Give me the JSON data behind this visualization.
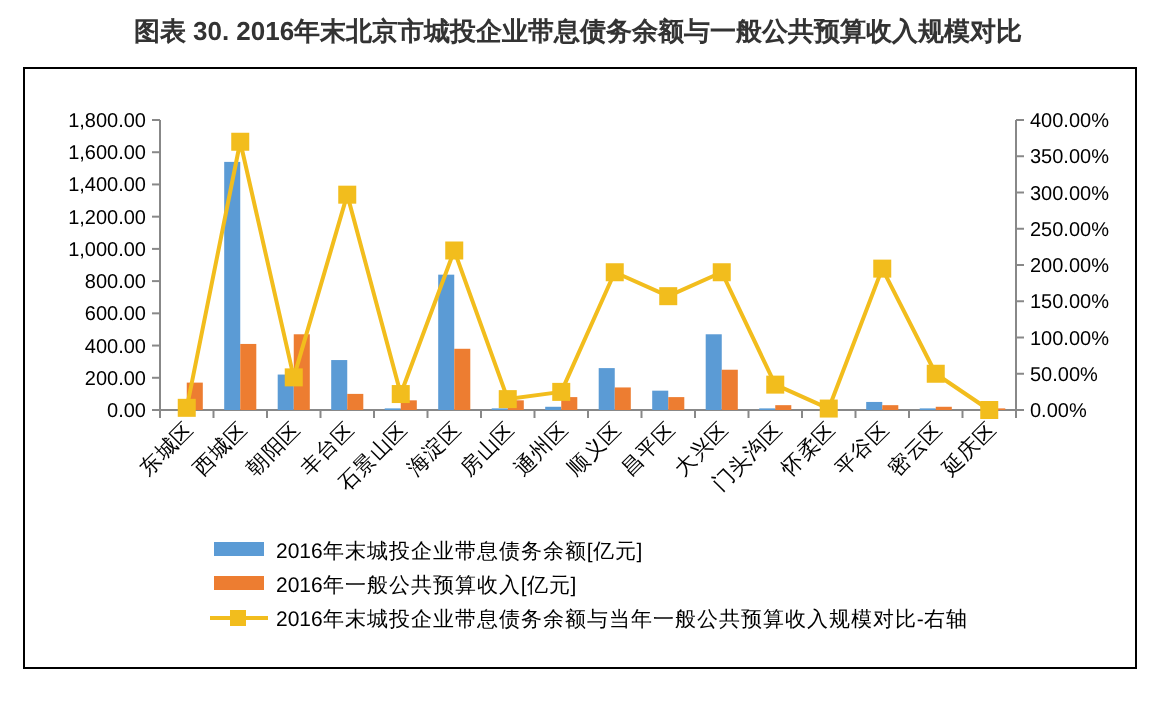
{
  "chart_data": {
    "type": "bar",
    "title": "图表 30.  2016年末北京市城投企业带息债务余额与一般公共预算收入规模对比",
    "categories": [
      "东城区",
      "西城区",
      "朝阳区",
      "丰台区",
      "石景山区",
      "海淀区",
      "房山区",
      "通州区",
      "顺义区",
      "昌平区",
      "大兴区",
      "门头沟区",
      "怀柔区",
      "平谷区",
      "密云区",
      "延庆区"
    ],
    "series": [
      {
        "name": "2016年末城投企业带息债务余额[亿元]",
        "color": "#5b9bd5",
        "values": [
          0,
          1540,
          220,
          310,
          10,
          840,
          10,
          20,
          260,
          120,
          470,
          10,
          0,
          50,
          10,
          0
        ]
      },
      {
        "name": "2016年一般公共预算收入[亿元]",
        "color": "#ed7d31",
        "values": [
          170,
          410,
          470,
          100,
          60,
          380,
          60,
          80,
          140,
          80,
          250,
          30,
          null,
          30,
          20,
          10
        ]
      },
      {
        "name": "2016年末城投企业带息债务余额与当年一般公共预算收入规模对比-右轴",
        "type": "line",
        "axis": "y2",
        "color": "#f2bd1d",
        "marker": "square",
        "values": [
          3,
          370,
          45,
          297,
          22,
          220,
          15,
          25,
          190,
          157,
          190,
          35,
          2,
          195,
          50,
          0
        ]
      }
    ],
    "ylim": [
      0,
      1800
    ],
    "yticks": [
      {
        "value": 0,
        "label": "0.00"
      },
      {
        "value": 200,
        "label": "200.00"
      },
      {
        "value": 400,
        "label": "400.00"
      },
      {
        "value": 600,
        "label": "600.00"
      },
      {
        "value": 800,
        "label": "800.00"
      },
      {
        "value": 1000,
        "label": "1,000.00"
      },
      {
        "value": 1200,
        "label": "1,200.00"
      },
      {
        "value": 1400,
        "label": "1,400.00"
      },
      {
        "value": 1600,
        "label": "1,600.00"
      },
      {
        "value": 1800,
        "label": "1,800.00"
      }
    ],
    "y2lim": [
      0,
      400
    ],
    "y2ticks": [
      {
        "value": 0,
        "label": "0.00%"
      },
      {
        "value": 50,
        "label": "50.00%"
      },
      {
        "value": 100,
        "label": "100.00%"
      },
      {
        "value": 150,
        "label": "150.00%"
      },
      {
        "value": 200,
        "label": "200.00%"
      },
      {
        "value": 250,
        "label": "250.00%"
      },
      {
        "value": 300,
        "label": "300.00%"
      },
      {
        "value": 350,
        "label": "350.00%"
      },
      {
        "value": 400,
        "label": "400.00%"
      }
    ],
    "grid": false,
    "legend": "bottom"
  }
}
